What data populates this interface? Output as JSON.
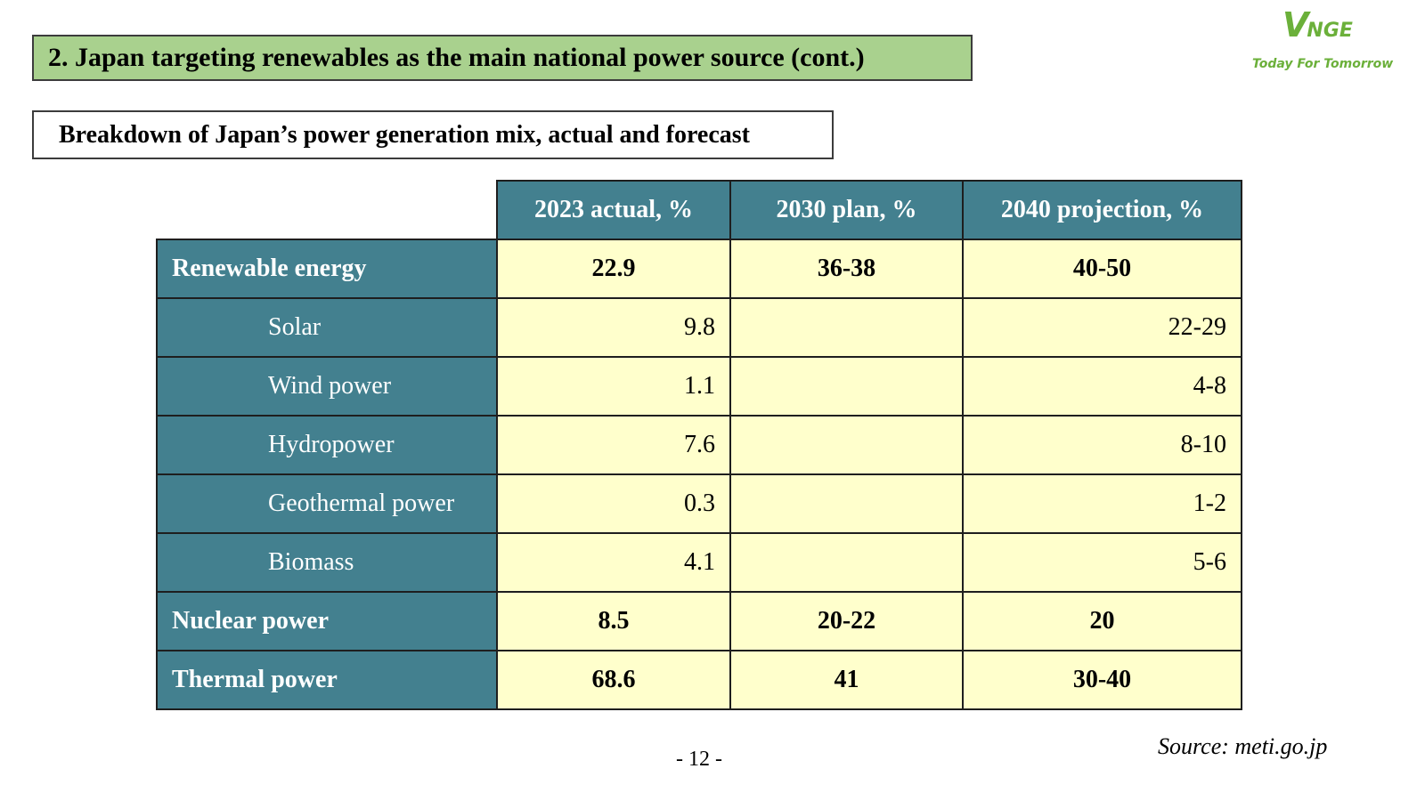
{
  "slide": {
    "title": "2. Japan targeting renewables as the main national power source (cont.)",
    "subtitle": "Breakdown of Japan’s power generation mix, actual and forecast",
    "page_number": "- 12 -",
    "source": "Source: meti.go.jp"
  },
  "logo": {
    "mark_v": "V",
    "mark_rest": "NGE",
    "tagline": "Today For Tomorrow",
    "color": "#6bb03a"
  },
  "table": {
    "columns": [
      "2023 actual, %",
      "2030 plan, %",
      "2040 projection, %"
    ],
    "rows": [
      {
        "label": "Renewable energy",
        "level": "main",
        "values": [
          "22.9",
          "36-38",
          "40-50"
        ]
      },
      {
        "label": "Solar",
        "level": "sub",
        "values": [
          "9.8",
          "",
          "22-29"
        ]
      },
      {
        "label": "Wind power",
        "level": "sub",
        "values": [
          "1.1",
          "",
          "4-8"
        ]
      },
      {
        "label": "Hydropower",
        "level": "sub",
        "values": [
          "7.6",
          "",
          "8-10"
        ]
      },
      {
        "label": "Geothermal power",
        "level": "sub",
        "values": [
          "0.3",
          "",
          "1-2"
        ]
      },
      {
        "label": "Biomass",
        "level": "sub",
        "values": [
          "4.1",
          "",
          "5-6"
        ]
      },
      {
        "label": "Nuclear power",
        "level": "main",
        "values": [
          "8.5",
          "20-22",
          "20"
        ]
      },
      {
        "label": "Thermal power",
        "level": "main",
        "values": [
          "68.6",
          "41",
          "30-40"
        ]
      }
    ]
  },
  "colors": {
    "header_fill": "#43808f",
    "cell_fill": "#ffffcc",
    "title_fill": "#a9d18e"
  }
}
